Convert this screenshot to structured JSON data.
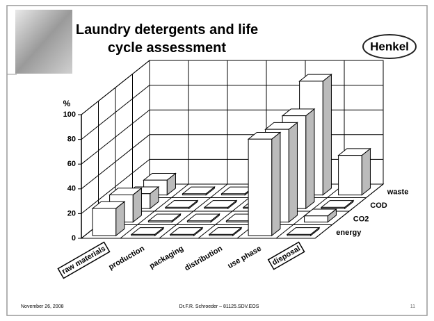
{
  "logo": "Henkel",
  "footer": {
    "date": "November 26, 2008",
    "author": "Dr.F.R. Schroeder – 81125.SDV.EOS",
    "page": "11"
  },
  "chart_data": {
    "type": "bar",
    "title": "Laundry detergents and life cycle assessment",
    "y_label": "%",
    "categories": [
      "raw materials",
      "production",
      "packaging",
      "distribution",
      "use phase",
      "disposal"
    ],
    "series": [
      {
        "name": "energy",
        "color": "#ffffff",
        "values": [
          22,
          1,
          1,
          1,
          78,
          1
        ]
      },
      {
        "name": "CO2",
        "color": "#ffffff",
        "values": [
          22,
          1,
          1,
          1,
          75,
          5
        ]
      },
      {
        "name": "COD",
        "color": "#ffffff",
        "values": [
          12,
          1,
          1,
          1,
          75,
          1
        ]
      },
      {
        "name": "waste",
        "color": "#ffffff",
        "values": [
          12,
          1,
          1,
          1,
          92,
          32
        ]
      }
    ],
    "ylim": [
      0,
      100
    ],
    "yticks": [
      0,
      20,
      40,
      60,
      80,
      100
    ],
    "grid": true
  }
}
